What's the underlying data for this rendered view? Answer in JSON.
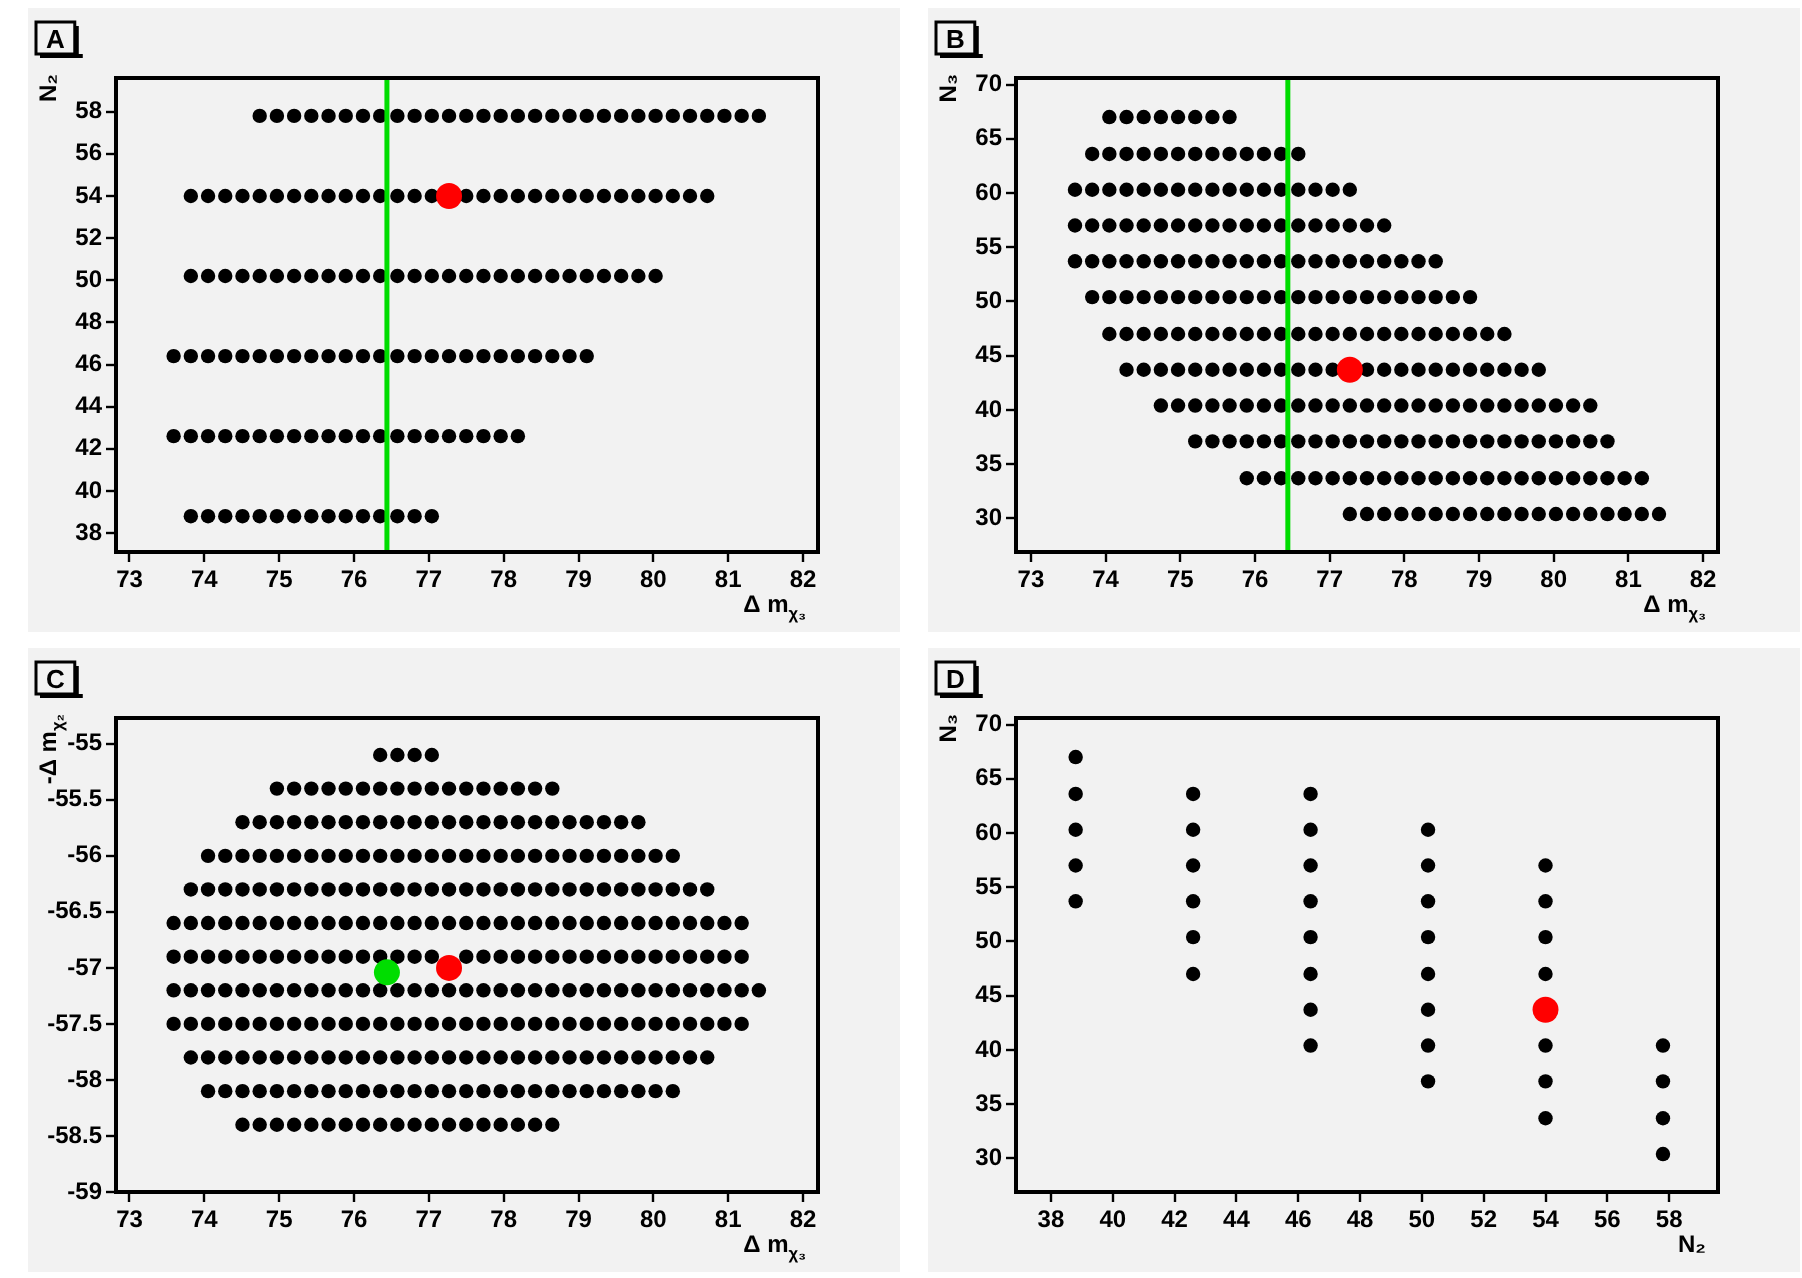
{
  "chart_data": [
    {
      "type": "scatter",
      "title": "A",
      "xlabel": "Δ m$_{χ₃}$",
      "ylabel": "N₂",
      "marker": "circle",
      "xlim": [
        72.82,
        82.2
      ],
      "ylim": [
        37.1,
        59.6
      ],
      "xticks": [
        73,
        74,
        75,
        76,
        77,
        78,
        79,
        80,
        81,
        82
      ],
      "yticks": [
        38,
        40,
        42,
        44,
        46,
        48,
        50,
        52,
        54,
        56,
        58
      ],
      "ref_lines": [
        {
          "axis": "x",
          "value": 76.44,
          "color": "#00dd00"
        }
      ],
      "series": [
        {
          "color": "#000000",
          "x": [
            74.74,
            74.97,
            75.2,
            75.43,
            75.66,
            75.89,
            76.12,
            76.35,
            76.58,
            76.81,
            77.04,
            77.27,
            77.5,
            77.73,
            77.96,
            78.19,
            78.42,
            78.65,
            78.88,
            79.11,
            79.34,
            79.57,
            79.8,
            80.03,
            80.26,
            80.49,
            80.72,
            80.95,
            81.18,
            81.41
          ],
          "values": [
            57.8,
            57.8,
            57.8,
            57.8,
            57.8,
            57.8,
            57.8,
            57.8,
            57.8,
            57.8,
            57.8,
            57.8,
            57.8,
            57.8,
            57.8,
            57.8,
            57.8,
            57.8,
            57.8,
            57.8,
            57.8,
            57.8,
            57.8,
            57.8,
            57.8,
            57.8,
            57.8,
            57.8,
            57.8,
            57.8
          ]
        },
        {
          "color": "#000000",
          "x": [
            73.82,
            74.05,
            74.28,
            74.51,
            74.74,
            74.97,
            75.2,
            75.43,
            75.66,
            75.89,
            76.12,
            76.35,
            76.58,
            76.81,
            77.04,
            77.5,
            77.73,
            77.96,
            78.19,
            78.42,
            78.65,
            78.88,
            79.11,
            79.34,
            79.57,
            79.8,
            80.03,
            80.26,
            80.49,
            80.72
          ],
          "values": [
            54,
            54,
            54,
            54,
            54,
            54,
            54,
            54,
            54,
            54,
            54,
            54,
            54,
            54,
            54,
            54,
            54,
            54,
            54,
            54,
            54,
            54,
            54,
            54,
            54,
            54,
            54,
            54,
            54,
            54
          ]
        },
        {
          "color": "#000000",
          "x": [
            73.82,
            74.05,
            74.28,
            74.51,
            74.74,
            74.97,
            75.2,
            75.43,
            75.66,
            75.89,
            76.12,
            76.35,
            76.58,
            76.81,
            77.04,
            77.27,
            77.5,
            77.73,
            77.96,
            78.19,
            78.42,
            78.65,
            78.88,
            79.11,
            79.34,
            79.57,
            79.8,
            80.03
          ],
          "values": [
            50.2,
            50.2,
            50.2,
            50.2,
            50.2,
            50.2,
            50.2,
            50.2,
            50.2,
            50.2,
            50.2,
            50.2,
            50.2,
            50.2,
            50.2,
            50.2,
            50.2,
            50.2,
            50.2,
            50.2,
            50.2,
            50.2,
            50.2,
            50.2,
            50.2,
            50.2,
            50.2,
            50.2
          ]
        },
        {
          "color": "#000000",
          "x": [
            73.59,
            73.82,
            74.05,
            74.28,
            74.51,
            74.74,
            74.97,
            75.2,
            75.43,
            75.66,
            75.89,
            76.12,
            76.35,
            76.58,
            76.81,
            77.04,
            77.27,
            77.5,
            77.73,
            77.96,
            78.19,
            78.42,
            78.65,
            78.88,
            79.11
          ],
          "values": [
            46.4,
            46.4,
            46.4,
            46.4,
            46.4,
            46.4,
            46.4,
            46.4,
            46.4,
            46.4,
            46.4,
            46.4,
            46.4,
            46.4,
            46.4,
            46.4,
            46.4,
            46.4,
            46.4,
            46.4,
            46.4,
            46.4,
            46.4,
            46.4,
            46.4
          ]
        },
        {
          "color": "#000000",
          "x": [
            73.59,
            73.82,
            74.05,
            74.28,
            74.51,
            74.74,
            74.97,
            75.2,
            75.43,
            75.66,
            75.89,
            76.12,
            76.35,
            76.58,
            76.81,
            77.04,
            77.27,
            77.5,
            77.73,
            77.96,
            78.19
          ],
          "values": [
            42.6,
            42.6,
            42.6,
            42.6,
            42.6,
            42.6,
            42.6,
            42.6,
            42.6,
            42.6,
            42.6,
            42.6,
            42.6,
            42.6,
            42.6,
            42.6,
            42.6,
            42.6,
            42.6,
            42.6,
            42.6
          ]
        },
        {
          "color": "#000000",
          "x": [
            73.82,
            74.05,
            74.28,
            74.51,
            74.74,
            74.97,
            75.2,
            75.43,
            75.66,
            75.89,
            76.12,
            76.35,
            76.58,
            76.81,
            77.04
          ],
          "values": [
            38.8,
            38.8,
            38.8,
            38.8,
            38.8,
            38.8,
            38.8,
            38.8,
            38.8,
            38.8,
            38.8,
            38.8,
            38.8,
            38.8,
            38.8
          ]
        },
        {
          "color": "#ff0000",
          "x": [
            77.27
          ],
          "values": [
            54
          ]
        }
      ]
    },
    {
      "type": "scatter",
      "title": "B",
      "xlabel": "Δ m$_{χ₃}$",
      "ylabel": "N₃",
      "marker": "circle",
      "xlim": [
        72.8,
        82.2
      ],
      "ylim": [
        26.9,
        70.6
      ],
      "xticks": [
        73,
        74,
        75,
        76,
        77,
        78,
        79,
        80,
        81,
        82
      ],
      "yticks": [
        30,
        35,
        40,
        45,
        50,
        55,
        60,
        65,
        70
      ],
      "ref_lines": [
        {
          "axis": "x",
          "value": 76.44,
          "color": "#00dd00"
        }
      ],
      "series": [
        {
          "color": "#000000",
          "x": [
            74.05,
            74.28,
            74.51,
            74.74,
            74.97,
            75.2,
            75.43,
            75.66
          ],
          "values": [
            67,
            67,
            67,
            67,
            67,
            67,
            67,
            67
          ]
        },
        {
          "color": "#000000",
          "x": [
            73.82,
            74.05,
            74.28,
            74.51,
            74.74,
            74.97,
            75.2,
            75.43,
            75.66,
            75.89,
            76.12,
            76.35,
            76.58
          ],
          "values": [
            63.6,
            63.6,
            63.6,
            63.6,
            63.6,
            63.6,
            63.6,
            63.6,
            63.6,
            63.6,
            63.6,
            63.6,
            63.6
          ]
        },
        {
          "color": "#000000",
          "x": [
            73.59,
            73.82,
            74.05,
            74.28,
            74.51,
            74.74,
            74.97,
            75.2,
            75.43,
            75.66,
            75.89,
            76.12,
            76.35,
            76.58,
            76.81,
            77.04,
            77.27
          ],
          "values": [
            60.3,
            60.3,
            60.3,
            60.3,
            60.3,
            60.3,
            60.3,
            60.3,
            60.3,
            60.3,
            60.3,
            60.3,
            60.3,
            60.3,
            60.3,
            60.3,
            60.3
          ]
        },
        {
          "color": "#000000",
          "x": [
            73.59,
            73.82,
            74.05,
            74.28,
            74.51,
            74.74,
            74.97,
            75.2,
            75.43,
            75.66,
            75.89,
            76.12,
            76.35,
            76.58,
            76.81,
            77.04,
            77.27,
            77.5,
            77.73
          ],
          "values": [
            57,
            57,
            57,
            57,
            57,
            57,
            57,
            57,
            57,
            57,
            57,
            57,
            57,
            57,
            57,
            57,
            57,
            57,
            57
          ]
        },
        {
          "color": "#000000",
          "x": [
            73.59,
            73.82,
            74.05,
            74.28,
            74.51,
            74.74,
            74.97,
            75.2,
            75.43,
            75.66,
            75.89,
            76.12,
            76.35,
            76.58,
            76.81,
            77.04,
            77.27,
            77.5,
            77.73,
            77.96,
            78.19,
            78.42
          ],
          "values": [
            53.7,
            53.7,
            53.7,
            53.7,
            53.7,
            53.7,
            53.7,
            53.7,
            53.7,
            53.7,
            53.7,
            53.7,
            53.7,
            53.7,
            53.7,
            53.7,
            53.7,
            53.7,
            53.7,
            53.7,
            53.7,
            53.7
          ]
        },
        {
          "color": "#000000",
          "x": [
            73.82,
            74.05,
            74.28,
            74.51,
            74.74,
            74.97,
            75.2,
            75.43,
            75.66,
            75.89,
            76.12,
            76.35,
            76.58,
            76.81,
            77.04,
            77.27,
            77.5,
            77.73,
            77.96,
            78.19,
            78.42,
            78.65,
            78.88
          ],
          "values": [
            50.4,
            50.4,
            50.4,
            50.4,
            50.4,
            50.4,
            50.4,
            50.4,
            50.4,
            50.4,
            50.4,
            50.4,
            50.4,
            50.4,
            50.4,
            50.4,
            50.4,
            50.4,
            50.4,
            50.4,
            50.4,
            50.4,
            50.4
          ]
        },
        {
          "color": "#000000",
          "x": [
            74.05,
            74.28,
            74.51,
            74.74,
            74.97,
            75.2,
            75.43,
            75.66,
            75.89,
            76.12,
            76.35,
            76.58,
            76.81,
            77.04,
            77.27,
            77.5,
            77.73,
            77.96,
            78.19,
            78.42,
            78.65,
            78.88,
            79.11,
            79.34
          ],
          "values": [
            47,
            47,
            47,
            47,
            47,
            47,
            47,
            47,
            47,
            47,
            47,
            47,
            47,
            47,
            47,
            47,
            47,
            47,
            47,
            47,
            47,
            47,
            47,
            47
          ]
        },
        {
          "color": "#000000",
          "x": [
            74.28,
            74.51,
            74.74,
            74.97,
            75.2,
            75.43,
            75.66,
            75.89,
            76.12,
            76.35,
            76.58,
            76.81,
            77.04,
            77.5,
            77.73,
            77.96,
            78.19,
            78.42,
            78.65,
            78.88,
            79.11,
            79.34,
            79.57,
            79.8
          ],
          "values": [
            43.7,
            43.7,
            43.7,
            43.7,
            43.7,
            43.7,
            43.7,
            43.7,
            43.7,
            43.7,
            43.7,
            43.7,
            43.7,
            43.7,
            43.7,
            43.7,
            43.7,
            43.7,
            43.7,
            43.7,
            43.7,
            43.7,
            43.7,
            43.7
          ]
        },
        {
          "color": "#000000",
          "x": [
            74.74,
            74.97,
            75.2,
            75.43,
            75.66,
            75.89,
            76.12,
            76.35,
            76.58,
            76.81,
            77.04,
            77.27,
            77.5,
            77.73,
            77.96,
            78.19,
            78.42,
            78.65,
            78.88,
            79.11,
            79.34,
            79.57,
            79.8,
            80.03,
            80.26,
            80.49
          ],
          "values": [
            40.4,
            40.4,
            40.4,
            40.4,
            40.4,
            40.4,
            40.4,
            40.4,
            40.4,
            40.4,
            40.4,
            40.4,
            40.4,
            40.4,
            40.4,
            40.4,
            40.4,
            40.4,
            40.4,
            40.4,
            40.4,
            40.4,
            40.4,
            40.4,
            40.4,
            40.4
          ]
        },
        {
          "color": "#000000",
          "x": [
            75.2,
            75.43,
            75.66,
            75.89,
            76.12,
            76.35,
            76.58,
            76.81,
            77.04,
            77.27,
            77.5,
            77.73,
            77.96,
            78.19,
            78.42,
            78.65,
            78.88,
            79.11,
            79.34,
            79.57,
            79.8,
            80.03,
            80.26,
            80.49,
            80.72
          ],
          "values": [
            37.1,
            37.1,
            37.1,
            37.1,
            37.1,
            37.1,
            37.1,
            37.1,
            37.1,
            37.1,
            37.1,
            37.1,
            37.1,
            37.1,
            37.1,
            37.1,
            37.1,
            37.1,
            37.1,
            37.1,
            37.1,
            37.1,
            37.1,
            37.1,
            37.1
          ]
        },
        {
          "color": "#000000",
          "x": [
            75.89,
            76.12,
            76.35,
            76.58,
            76.81,
            77.04,
            77.27,
            77.5,
            77.73,
            77.96,
            78.19,
            78.42,
            78.65,
            78.88,
            79.11,
            79.34,
            79.57,
            79.8,
            80.03,
            80.26,
            80.49,
            80.72,
            80.95,
            81.18
          ],
          "values": [
            33.7,
            33.7,
            33.7,
            33.7,
            33.7,
            33.7,
            33.7,
            33.7,
            33.7,
            33.7,
            33.7,
            33.7,
            33.7,
            33.7,
            33.7,
            33.7,
            33.7,
            33.7,
            33.7,
            33.7,
            33.7,
            33.7,
            33.7,
            33.7
          ]
        },
        {
          "color": "#000000",
          "x": [
            77.27,
            77.5,
            77.73,
            77.96,
            78.19,
            78.42,
            78.65,
            78.88,
            79.11,
            79.34,
            79.57,
            79.8,
            80.03,
            80.26,
            80.49,
            80.72,
            80.95,
            81.18,
            81.41
          ],
          "values": [
            30.4,
            30.4,
            30.4,
            30.4,
            30.4,
            30.4,
            30.4,
            30.4,
            30.4,
            30.4,
            30.4,
            30.4,
            30.4,
            30.4,
            30.4,
            30.4,
            30.4,
            30.4,
            30.4
          ]
        },
        {
          "color": "#ff0000",
          "x": [
            77.27
          ],
          "values": [
            43.7
          ]
        }
      ]
    },
    {
      "type": "scatter",
      "title": "C",
      "xlabel": "Δ m$_{χ₃}$",
      "ylabel": "-Δ m$_{χ₂}$",
      "marker": "circle",
      "xlim": [
        72.82,
        82.2
      ],
      "ylim": [
        -59,
        -54.77
      ],
      "xticks": [
        73,
        74,
        75,
        76,
        77,
        78,
        79,
        80,
        81,
        82
      ],
      "yticks": [
        -59,
        -58.5,
        -58,
        -57.5,
        -57,
        -56.5,
        -56,
        -55.5,
        -55
      ],
      "series": [
        {
          "color": "#000000",
          "x": [
            76.35,
            76.58,
            76.81,
            77.04
          ],
          "values": [
            -55.1,
            -55.1,
            -55.1,
            -55.1
          ]
        },
        {
          "color": "#000000",
          "x": [
            74.97,
            75.2,
            75.43,
            75.66,
            75.89,
            76.12,
            76.35,
            76.58,
            76.81,
            77.04,
            77.27,
            77.5,
            77.73,
            77.96,
            78.19,
            78.42,
            78.65
          ],
          "values": [
            -55.4,
            -55.4,
            -55.4,
            -55.4,
            -55.4,
            -55.4,
            -55.4,
            -55.4,
            -55.4,
            -55.4,
            -55.4,
            -55.4,
            -55.4,
            -55.4,
            -55.4,
            -55.4,
            -55.4
          ]
        },
        {
          "color": "#000000",
          "x": [
            74.51,
            74.74,
            74.97,
            75.2,
            75.43,
            75.66,
            75.89,
            76.12,
            76.35,
            76.58,
            76.81,
            77.04,
            77.27,
            77.5,
            77.73,
            77.96,
            78.19,
            78.42,
            78.65,
            78.88,
            79.11,
            79.34,
            79.57,
            79.8
          ],
          "values": [
            -55.7,
            -55.7,
            -55.7,
            -55.7,
            -55.7,
            -55.7,
            -55.7,
            -55.7,
            -55.7,
            -55.7,
            -55.7,
            -55.7,
            -55.7,
            -55.7,
            -55.7,
            -55.7,
            -55.7,
            -55.7,
            -55.7,
            -55.7,
            -55.7,
            -55.7,
            -55.7,
            -55.7
          ]
        },
        {
          "color": "#000000",
          "x": [
            74.05,
            74.28,
            74.51,
            74.74,
            74.97,
            75.2,
            75.43,
            75.66,
            75.89,
            76.12,
            76.35,
            76.58,
            76.81,
            77.04,
            77.27,
            77.5,
            77.73,
            77.96,
            78.19,
            78.42,
            78.65,
            78.88,
            79.11,
            79.34,
            79.57,
            79.8,
            80.03,
            80.26
          ],
          "values": [
            -56,
            -56,
            -56,
            -56,
            -56,
            -56,
            -56,
            -56,
            -56,
            -56,
            -56,
            -56,
            -56,
            -56,
            -56,
            -56,
            -56,
            -56,
            -56,
            -56,
            -56,
            -56,
            -56,
            -56,
            -56,
            -56,
            -56,
            -56
          ]
        },
        {
          "color": "#000000",
          "x": [
            73.82,
            74.05,
            74.28,
            74.51,
            74.74,
            74.97,
            75.2,
            75.43,
            75.66,
            75.89,
            76.12,
            76.35,
            76.58,
            76.81,
            77.04,
            77.27,
            77.5,
            77.73,
            77.96,
            78.19,
            78.42,
            78.65,
            78.88,
            79.11,
            79.34,
            79.57,
            79.8,
            80.03,
            80.26,
            80.49,
            80.72
          ],
          "values": [
            -56.3,
            -56.3,
            -56.3,
            -56.3,
            -56.3,
            -56.3,
            -56.3,
            -56.3,
            -56.3,
            -56.3,
            -56.3,
            -56.3,
            -56.3,
            -56.3,
            -56.3,
            -56.3,
            -56.3,
            -56.3,
            -56.3,
            -56.3,
            -56.3,
            -56.3,
            -56.3,
            -56.3,
            -56.3,
            -56.3,
            -56.3,
            -56.3,
            -56.3,
            -56.3,
            -56.3
          ]
        },
        {
          "color": "#000000",
          "x": [
            73.59,
            73.82,
            74.05,
            74.28,
            74.51,
            74.74,
            74.97,
            75.2,
            75.43,
            75.66,
            75.89,
            76.12,
            76.35,
            76.58,
            76.81,
            77.04,
            77.27,
            77.5,
            77.73,
            77.96,
            78.19,
            78.42,
            78.65,
            78.88,
            79.11,
            79.34,
            79.57,
            79.8,
            80.03,
            80.26,
            80.49,
            80.72,
            80.95,
            81.18
          ],
          "values": [
            -56.6,
            -56.6,
            -56.6,
            -56.6,
            -56.6,
            -56.6,
            -56.6,
            -56.6,
            -56.6,
            -56.6,
            -56.6,
            -56.6,
            -56.6,
            -56.6,
            -56.6,
            -56.6,
            -56.6,
            -56.6,
            -56.6,
            -56.6,
            -56.6,
            -56.6,
            -56.6,
            -56.6,
            -56.6,
            -56.6,
            -56.6,
            -56.6,
            -56.6,
            -56.6,
            -56.6,
            -56.6,
            -56.6,
            -56.6
          ]
        },
        {
          "color": "#000000",
          "x": [
            73.59,
            73.82,
            74.05,
            74.28,
            74.51,
            74.74,
            74.97,
            75.2,
            75.43,
            75.66,
            75.89,
            76.12,
            76.35,
            76.58,
            76.81,
            77.04,
            77.27,
            77.5,
            77.73,
            77.96,
            78.19,
            78.42,
            78.65,
            78.88,
            79.11,
            79.34,
            79.57,
            79.8,
            80.03,
            80.26,
            80.49,
            80.72,
            80.95,
            81.18
          ],
          "values": [
            -56.9,
            -56.9,
            -56.9,
            -56.9,
            -56.9,
            -56.9,
            -56.9,
            -56.9,
            -56.9,
            -56.9,
            -56.9,
            -56.9,
            -56.9,
            -56.9,
            -56.9,
            -56.9,
            null,
            -56.9,
            -56.9,
            -56.9,
            -56.9,
            -56.9,
            -56.9,
            -56.9,
            -56.9,
            -56.9,
            -56.9,
            -56.9,
            -56.9,
            -56.9,
            -56.9,
            -56.9,
            -56.9,
            -56.9
          ]
        },
        {
          "color": "#000000",
          "x": [
            73.59,
            73.82,
            74.05,
            74.28,
            74.51,
            74.74,
            74.97,
            75.2,
            75.43,
            75.66,
            75.89,
            76.12,
            76.35,
            76.58,
            76.81,
            77.04,
            77.27,
            77.5,
            77.73,
            77.96,
            78.19,
            78.42,
            78.65,
            78.88,
            79.11,
            79.34,
            79.57,
            79.8,
            80.03,
            80.26,
            80.49,
            80.72,
            80.95,
            81.18,
            81.41
          ],
          "values": [
            -57.2,
            -57.2,
            -57.2,
            -57.2,
            -57.2,
            -57.2,
            -57.2,
            -57.2,
            -57.2,
            -57.2,
            -57.2,
            -57.2,
            -57.2,
            -57.2,
            -57.2,
            -57.2,
            -57.2,
            -57.2,
            -57.2,
            -57.2,
            -57.2,
            -57.2,
            -57.2,
            -57.2,
            -57.2,
            -57.2,
            -57.2,
            -57.2,
            -57.2,
            -57.2,
            -57.2,
            -57.2,
            -57.2,
            -57.2,
            -57.2
          ]
        },
        {
          "color": "#000000",
          "x": [
            73.59,
            73.82,
            74.05,
            74.28,
            74.51,
            74.74,
            74.97,
            75.2,
            75.43,
            75.66,
            75.89,
            76.12,
            76.35,
            76.58,
            76.81,
            77.04,
            77.27,
            77.5,
            77.73,
            77.96,
            78.19,
            78.42,
            78.65,
            78.88,
            79.11,
            79.34,
            79.57,
            79.8,
            80.03,
            80.26,
            80.49,
            80.72,
            80.95,
            81.18
          ],
          "values": [
            -57.5,
            -57.5,
            -57.5,
            -57.5,
            -57.5,
            -57.5,
            -57.5,
            -57.5,
            -57.5,
            -57.5,
            -57.5,
            -57.5,
            -57.5,
            -57.5,
            -57.5,
            -57.5,
            -57.5,
            -57.5,
            -57.5,
            -57.5,
            -57.5,
            -57.5,
            -57.5,
            -57.5,
            -57.5,
            -57.5,
            -57.5,
            -57.5,
            -57.5,
            -57.5,
            -57.5,
            -57.5,
            -57.5,
            -57.5
          ]
        },
        {
          "color": "#000000",
          "x": [
            73.82,
            74.05,
            74.28,
            74.51,
            74.74,
            74.97,
            75.2,
            75.43,
            75.66,
            75.89,
            76.12,
            76.35,
            76.58,
            76.81,
            77.04,
            77.27,
            77.5,
            77.73,
            77.96,
            78.19,
            78.42,
            78.65,
            78.88,
            79.11,
            79.34,
            79.57,
            79.8,
            80.03,
            80.26,
            80.49,
            80.72
          ],
          "values": [
            -57.8,
            -57.8,
            -57.8,
            -57.8,
            -57.8,
            -57.8,
            -57.8,
            -57.8,
            -57.8,
            -57.8,
            -57.8,
            -57.8,
            -57.8,
            -57.8,
            -57.8,
            -57.8,
            -57.8,
            -57.8,
            -57.8,
            -57.8,
            -57.8,
            -57.8,
            -57.8,
            -57.8,
            -57.8,
            -57.8,
            -57.8,
            -57.8,
            -57.8,
            -57.8,
            -57.8
          ]
        },
        {
          "color": "#000000",
          "x": [
            74.05,
            74.28,
            74.51,
            74.74,
            74.97,
            75.2,
            75.43,
            75.66,
            75.89,
            76.12,
            76.35,
            76.58,
            76.81,
            77.04,
            77.27,
            77.5,
            77.73,
            77.96,
            78.19,
            78.42,
            78.65,
            78.88,
            79.11,
            79.34,
            79.57,
            79.8,
            80.03,
            80.26
          ],
          "values": [
            -58.1,
            -58.1,
            -58.1,
            -58.1,
            -58.1,
            -58.1,
            -58.1,
            -58.1,
            -58.1,
            -58.1,
            -58.1,
            -58.1,
            -58.1,
            -58.1,
            -58.1,
            -58.1,
            -58.1,
            -58.1,
            -58.1,
            -58.1,
            -58.1,
            -58.1,
            -58.1,
            -58.1,
            -58.1,
            -58.1,
            -58.1,
            -58.1
          ]
        },
        {
          "color": "#000000",
          "x": [
            74.51,
            74.74,
            74.97,
            75.2,
            75.43,
            75.66,
            75.89,
            76.12,
            76.35,
            76.58,
            76.81,
            77.04,
            77.27,
            77.5,
            77.73,
            77.96,
            78.19,
            78.42,
            78.65
          ],
          "values": [
            -58.4,
            -58.4,
            -58.4,
            -58.4,
            -58.4,
            -58.4,
            -58.4,
            -58.4,
            -58.4,
            -58.4,
            -58.4,
            -58.4,
            -58.4,
            -58.4,
            -58.4,
            -58.4,
            -58.4,
            -58.4,
            -58.4
          ]
        },
        {
          "color": "#00dd00",
          "x": [
            76.44
          ],
          "values": [
            -57.04
          ]
        },
        {
          "color": "#ff0000",
          "x": [
            77.27
          ],
          "values": [
            -57
          ]
        }
      ]
    },
    {
      "type": "scatter",
      "title": "D",
      "xlabel": "N₂",
      "ylabel": "N₃",
      "marker": "circle",
      "xlim": [
        36.87,
        59.58
      ],
      "ylim": [
        26.9,
        70.6
      ],
      "xticks": [
        38,
        40,
        42,
        44,
        46,
        48,
        50,
        52,
        54,
        56,
        58
      ],
      "yticks": [
        30,
        35,
        40,
        45,
        50,
        55,
        60,
        65,
        70
      ],
      "series": [
        {
          "color": "#000000",
          "x": [
            38.8,
            38.8,
            38.8,
            38.8,
            38.8,
            42.6,
            42.6,
            42.6,
            42.6,
            42.6,
            42.6,
            46.4,
            46.4,
            46.4,
            46.4,
            46.4,
            46.4,
            46.4,
            46.4,
            50.2,
            50.2,
            50.2,
            50.2,
            50.2,
            50.2,
            50.2,
            50.2,
            54,
            54,
            54,
            54,
            54,
            54,
            54,
            57.8,
            57.8,
            57.8,
            57.8
          ],
          "values": [
            67,
            63.6,
            60.3,
            57,
            53.7,
            63.6,
            60.3,
            57,
            53.7,
            50.4,
            47,
            63.6,
            60.3,
            57,
            53.7,
            50.4,
            47,
            43.7,
            40.4,
            60.3,
            57,
            53.7,
            50.4,
            47,
            43.7,
            40.4,
            37.1,
            57,
            53.7,
            50.4,
            47,
            40.4,
            37.1,
            33.7,
            40.4,
            37.1,
            33.7,
            30.4
          ]
        },
        {
          "color": "#ff0000",
          "x": [
            54
          ],
          "values": [
            43.7
          ]
        }
      ]
    }
  ]
}
